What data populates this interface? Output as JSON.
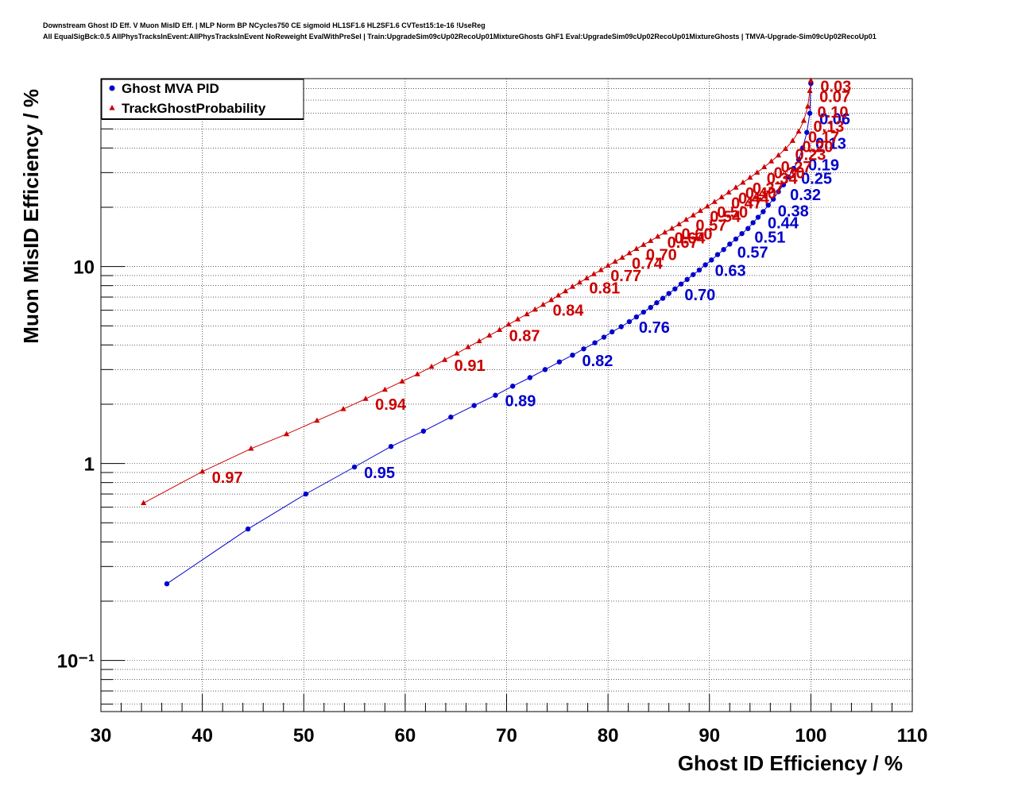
{
  "title_lines": [
    "Downstream Ghost ID Eff. V Muon MisID Eff. | MLP Norm BP NCycles750 CE sigmoid HL1SF1.6 HL2SF1.6 CVTest15:1e-16 !UseReg",
    "All EqualSigBck:0.5 AllPhysTracksInEvent:AllPhysTracksInEvent NoReweight EvalWithPreSel | Train:UpgradeSim09cUp02RecoUp01MixtureGhosts GhF1 Eval:UpgradeSim09cUp02RecoUp01MixtureGhosts | TMVA-Upgrade-Sim09cUp02RecoUp01"
  ],
  "chart_data": {
    "type": "line",
    "xlabel": "Ghost ID Efficiency / %",
    "ylabel": "Muon MisID Efficiency / %",
    "xlim": [
      30,
      110
    ],
    "ylim": [
      0.055,
      90
    ],
    "yscale": "log",
    "grid": true,
    "legend_position": "top-left",
    "x_ticks": [
      "30",
      "40",
      "50",
      "60",
      "70",
      "80",
      "90",
      "100",
      "110"
    ],
    "y_ticks": [
      {
        "value": 10,
        "label": "10"
      },
      {
        "value": 1,
        "label": "1"
      },
      {
        "value": 0.1,
        "label": "10⁻¹"
      }
    ],
    "series": [
      {
        "name": "Ghost MVA PID",
        "color": "#0000cc",
        "marker": "circle",
        "points": [
          [
            36.5,
            0.245
          ],
          [
            44.5,
            0.465
          ],
          [
            50.2,
            0.7
          ],
          [
            55.0,
            0.96
          ],
          [
            58.6,
            1.22
          ],
          [
            61.8,
            1.46
          ],
          [
            64.5,
            1.72
          ],
          [
            66.8,
            1.97
          ],
          [
            68.9,
            2.22
          ],
          [
            70.6,
            2.47
          ],
          [
            72.3,
            2.73
          ],
          [
            73.8,
            3.0
          ],
          [
            75.2,
            3.28
          ],
          [
            76.5,
            3.55
          ],
          [
            77.6,
            3.82
          ],
          [
            78.7,
            4.1
          ],
          [
            79.6,
            4.38
          ],
          [
            80.4,
            4.66
          ],
          [
            81.3,
            4.95
          ],
          [
            82.1,
            5.25
          ],
          [
            82.8,
            5.55
          ],
          [
            83.5,
            5.87
          ],
          [
            84.2,
            6.2
          ],
          [
            84.8,
            6.55
          ],
          [
            85.4,
            6.9
          ],
          [
            86.0,
            7.3
          ],
          [
            86.6,
            7.7
          ],
          [
            87.2,
            8.15
          ],
          [
            87.8,
            8.6
          ],
          [
            88.4,
            9.1
          ],
          [
            89.0,
            9.6
          ],
          [
            89.6,
            10.2
          ],
          [
            90.2,
            10.8
          ],
          [
            90.8,
            11.5
          ],
          [
            91.4,
            12.2
          ],
          [
            92.0,
            13.0
          ],
          [
            92.6,
            13.8
          ],
          [
            93.2,
            14.7
          ],
          [
            93.8,
            15.6
          ],
          [
            94.3,
            16.7
          ],
          [
            94.8,
            17.8
          ],
          [
            95.3,
            19.0
          ],
          [
            95.8,
            20.5
          ],
          [
            96.3,
            22.0
          ],
          [
            96.8,
            24.0
          ],
          [
            97.3,
            26.0
          ],
          [
            97.8,
            28.5
          ],
          [
            98.3,
            31.5
          ],
          [
            98.8,
            35.0
          ],
          [
            99.2,
            40.0
          ],
          [
            99.6,
            48.0
          ],
          [
            99.9,
            60.0
          ],
          [
            100.0,
            85.0
          ]
        ],
        "cut_labels": [
          {
            "label": "0.95",
            "x": 55.0,
            "y": 0.96
          },
          {
            "label": "0.89",
            "x": 68.9,
            "y": 2.22
          },
          {
            "label": "0.82",
            "x": 76.5,
            "y": 3.55
          },
          {
            "label": "0.76",
            "x": 82.1,
            "y": 5.25
          },
          {
            "label": "0.70",
            "x": 86.6,
            "y": 7.7
          },
          {
            "label": "0.63",
            "x": 89.6,
            "y": 10.2
          },
          {
            "label": "0.57",
            "x": 91.8,
            "y": 12.6
          },
          {
            "label": "0.51",
            "x": 93.5,
            "y": 15.1
          },
          {
            "label": "0.44",
            "x": 94.8,
            "y": 17.8
          },
          {
            "label": "0.38",
            "x": 95.8,
            "y": 20.5
          },
          {
            "label": "0.32",
            "x": 97.0,
            "y": 24.8
          },
          {
            "label": "0.25",
            "x": 98.1,
            "y": 30.0
          },
          {
            "label": "0.19",
            "x": 98.8,
            "y": 35.0
          },
          {
            "label": "0.13",
            "x": 99.5,
            "y": 45.0
          },
          {
            "label": "0.06",
            "x": 99.9,
            "y": 60.0
          }
        ]
      },
      {
        "name": "TrackGhostProbability",
        "color": "#cc0000",
        "marker": "triangle",
        "points": [
          [
            34.2,
            0.63
          ],
          [
            40.0,
            0.91
          ],
          [
            44.8,
            1.19
          ],
          [
            48.3,
            1.41
          ],
          [
            51.3,
            1.65
          ],
          [
            53.9,
            1.89
          ],
          [
            56.1,
            2.13
          ],
          [
            58.0,
            2.37
          ],
          [
            59.7,
            2.61
          ],
          [
            61.2,
            2.84
          ],
          [
            62.6,
            3.1
          ],
          [
            63.9,
            3.36
          ],
          [
            65.1,
            3.62
          ],
          [
            66.2,
            3.9
          ],
          [
            67.3,
            4.18
          ],
          [
            68.3,
            4.47
          ],
          [
            69.3,
            4.77
          ],
          [
            70.2,
            5.08
          ],
          [
            71.1,
            5.4
          ],
          [
            72.0,
            5.73
          ],
          [
            72.8,
            6.05
          ],
          [
            73.6,
            6.4
          ],
          [
            74.4,
            6.76
          ],
          [
            75.1,
            7.13
          ],
          [
            75.8,
            7.5
          ],
          [
            76.5,
            7.9
          ],
          [
            77.2,
            8.3
          ],
          [
            77.9,
            8.72
          ],
          [
            78.6,
            9.16
          ],
          [
            79.3,
            9.6
          ],
          [
            80.0,
            10.1
          ],
          [
            80.7,
            10.6
          ],
          [
            81.4,
            11.1
          ],
          [
            82.1,
            11.7
          ],
          [
            82.8,
            12.3
          ],
          [
            83.5,
            12.9
          ],
          [
            84.2,
            13.5
          ],
          [
            84.9,
            14.2
          ],
          [
            85.6,
            14.9
          ],
          [
            86.3,
            15.6
          ],
          [
            87.0,
            16.4
          ],
          [
            87.7,
            17.3
          ],
          [
            88.4,
            18.2
          ],
          [
            89.1,
            19.2
          ],
          [
            89.8,
            20.2
          ],
          [
            90.5,
            21.3
          ],
          [
            91.2,
            22.5
          ],
          [
            91.9,
            23.8
          ],
          [
            92.6,
            25.2
          ],
          [
            93.3,
            26.7
          ],
          [
            94.0,
            28.3
          ],
          [
            94.7,
            30.0
          ],
          [
            95.4,
            32.0
          ],
          [
            96.1,
            34.2
          ],
          [
            96.8,
            36.7
          ],
          [
            97.5,
            39.6
          ],
          [
            98.2,
            43.5
          ],
          [
            98.8,
            48.5
          ],
          [
            99.3,
            55.0
          ],
          [
            99.7,
            65.0
          ],
          [
            99.9,
            78.0
          ],
          [
            100.0,
            88.0
          ]
        ],
        "cut_labels": [
          {
            "label": "0.97",
            "x": 40.0,
            "y": 0.91
          },
          {
            "label": "0.94",
            "x": 56.1,
            "y": 2.13
          },
          {
            "label": "0.91",
            "x": 63.9,
            "y": 3.36
          },
          {
            "label": "0.87",
            "x": 69.3,
            "y": 4.77
          },
          {
            "label": "0.84",
            "x": 73.6,
            "y": 6.4
          },
          {
            "label": "0.81",
            "x": 77.2,
            "y": 8.3
          },
          {
            "label": "0.77",
            "x": 79.3,
            "y": 9.6
          },
          {
            "label": "0.74",
            "x": 81.4,
            "y": 11.1
          },
          {
            "label": "0.70",
            "x": 82.8,
            "y": 12.3
          },
          {
            "label": "0.67",
            "x": 84.9,
            "y": 14.2
          },
          {
            "label": "0.64",
            "x": 85.6,
            "y": 14.9
          },
          {
            "label": "0.60",
            "x": 86.3,
            "y": 15.6
          },
          {
            "label": "0.57",
            "x": 87.7,
            "y": 17.3
          },
          {
            "label": "0.54",
            "x": 89.1,
            "y": 19.2
          },
          {
            "label": "0.50",
            "x": 89.8,
            "y": 20.2
          },
          {
            "label": "0.47",
            "x": 91.2,
            "y": 22.5
          },
          {
            "label": "0.44",
            "x": 91.9,
            "y": 23.8
          },
          {
            "label": "0.40",
            "x": 92.6,
            "y": 25.2
          },
          {
            "label": "0.37",
            "x": 93.3,
            "y": 26.7
          },
          {
            "label": "0.34",
            "x": 94.7,
            "y": 30.0
          },
          {
            "label": "0.30",
            "x": 95.4,
            "y": 32.0
          },
          {
            "label": "0.27",
            "x": 96.1,
            "y": 34.2
          },
          {
            "label": "0.23",
            "x": 97.5,
            "y": 39.6
          },
          {
            "label": "0.20",
            "x": 98.2,
            "y": 43.5
          },
          {
            "label": "0.17",
            "x": 98.8,
            "y": 48.5
          },
          {
            "label": "0.13",
            "x": 99.3,
            "y": 55.0
          },
          {
            "label": "0.10",
            "x": 99.7,
            "y": 65.0
          },
          {
            "label": "0.07",
            "x": 99.9,
            "y": 78.0
          },
          {
            "label": "0.03",
            "x": 100.0,
            "y": 88.0
          }
        ]
      }
    ]
  }
}
